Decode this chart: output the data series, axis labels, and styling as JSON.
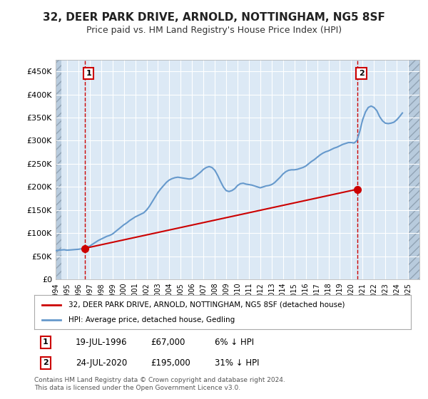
{
  "title": "32, DEER PARK DRIVE, ARNOLD, NOTTINGHAM, NG5 8SF",
  "subtitle": "Price paid vs. HM Land Registry's House Price Index (HPI)",
  "ylabel": "",
  "background_color": "#ffffff",
  "plot_bg_color": "#dce9f5",
  "hatch_color": "#b0c4d8",
  "grid_color": "#ffffff",
  "red_line_color": "#cc0000",
  "blue_line_color": "#6699cc",
  "marker1_x": 1996.55,
  "marker1_y": 67000,
  "marker2_x": 2020.55,
  "marker2_y": 195000,
  "annotation1": "1",
  "annotation2": "2",
  "legend_label1": "32, DEER PARK DRIVE, ARNOLD, NOTTINGHAM, NG5 8SF (detached house)",
  "legend_label2": "HPI: Average price, detached house, Gedling",
  "note1_label": "1",
  "note1_date": "19-JUL-1996",
  "note1_price": "£67,000",
  "note1_hpi": "6% ↓ HPI",
  "note2_label": "2",
  "note2_date": "24-JUL-2020",
  "note2_price": "£195,000",
  "note2_hpi": "31% ↓ HPI",
  "footer": "Contains HM Land Registry data © Crown copyright and database right 2024.\nThis data is licensed under the Open Government Licence v3.0.",
  "ylim": [
    0,
    475000
  ],
  "xlim_start": 1994,
  "xlim_end": 2026,
  "yticks": [
    0,
    50000,
    100000,
    150000,
    200000,
    250000,
    300000,
    350000,
    400000,
    450000
  ],
  "ytick_labels": [
    "£0",
    "£50K",
    "£100K",
    "£150K",
    "£200K",
    "£250K",
    "£300K",
    "£350K",
    "£400K",
    "£450K"
  ],
  "xticks": [
    1994,
    1995,
    1996,
    1997,
    1998,
    1999,
    2000,
    2001,
    2002,
    2003,
    2004,
    2005,
    2006,
    2007,
    2008,
    2009,
    2010,
    2011,
    2012,
    2013,
    2014,
    2015,
    2016,
    2017,
    2018,
    2019,
    2020,
    2021,
    2022,
    2023,
    2024,
    2025
  ],
  "hpi_data": {
    "x": [
      1994.0,
      1994.25,
      1994.5,
      1994.75,
      1995.0,
      1995.25,
      1995.5,
      1995.75,
      1996.0,
      1996.25,
      1996.5,
      1996.75,
      1997.0,
      1997.25,
      1997.5,
      1997.75,
      1998.0,
      1998.25,
      1998.5,
      1998.75,
      1999.0,
      1999.25,
      1999.5,
      1999.75,
      2000.0,
      2000.25,
      2000.5,
      2000.75,
      2001.0,
      2001.25,
      2001.5,
      2001.75,
      2002.0,
      2002.25,
      2002.5,
      2002.75,
      2003.0,
      2003.25,
      2003.5,
      2003.75,
      2004.0,
      2004.25,
      2004.5,
      2004.75,
      2005.0,
      2005.25,
      2005.5,
      2005.75,
      2006.0,
      2006.25,
      2006.5,
      2006.75,
      2007.0,
      2007.25,
      2007.5,
      2007.75,
      2008.0,
      2008.25,
      2008.5,
      2008.75,
      2009.0,
      2009.25,
      2009.5,
      2009.75,
      2010.0,
      2010.25,
      2010.5,
      2010.75,
      2011.0,
      2011.25,
      2011.5,
      2011.75,
      2012.0,
      2012.25,
      2012.5,
      2012.75,
      2013.0,
      2013.25,
      2013.5,
      2013.75,
      2014.0,
      2014.25,
      2014.5,
      2014.75,
      2015.0,
      2015.25,
      2015.5,
      2015.75,
      2016.0,
      2016.25,
      2016.5,
      2016.75,
      2017.0,
      2017.25,
      2017.5,
      2017.75,
      2018.0,
      2018.25,
      2018.5,
      2018.75,
      2019.0,
      2019.25,
      2019.5,
      2019.75,
      2020.0,
      2020.25,
      2020.5,
      2020.75,
      2021.0,
      2021.25,
      2021.5,
      2021.75,
      2022.0,
      2022.25,
      2022.5,
      2022.75,
      2023.0,
      2023.25,
      2023.5,
      2023.75,
      2024.0,
      2024.25,
      2024.5
    ],
    "y": [
      62000,
      63000,
      63500,
      64000,
      63000,
      63500,
      64000,
      64500,
      65000,
      66000,
      67000,
      69000,
      72000,
      76000,
      80000,
      84000,
      87000,
      90000,
      93000,
      95000,
      98000,
      103000,
      108000,
      113000,
      118000,
      122000,
      127000,
      131000,
      135000,
      138000,
      141000,
      144000,
      150000,
      158000,
      168000,
      178000,
      188000,
      196000,
      203000,
      210000,
      215000,
      218000,
      220000,
      221000,
      220000,
      219000,
      218000,
      217000,
      218000,
      222000,
      227000,
      232000,
      238000,
      242000,
      244000,
      242000,
      236000,
      225000,
      212000,
      200000,
      192000,
      190000,
      192000,
      196000,
      203000,
      207000,
      208000,
      206000,
      205000,
      204000,
      202000,
      200000,
      198000,
      200000,
      202000,
      203000,
      205000,
      209000,
      215000,
      221000,
      228000,
      233000,
      236000,
      237000,
      237000,
      238000,
      240000,
      242000,
      245000,
      250000,
      255000,
      259000,
      264000,
      269000,
      273000,
      276000,
      278000,
      281000,
      284000,
      286000,
      289000,
      292000,
      294000,
      296000,
      296000,
      295000,
      300000,
      320000,
      345000,
      362000,
      372000,
      375000,
      372000,
      365000,
      352000,
      343000,
      338000,
      337000,
      338000,
      340000,
      345000,
      352000,
      360000
    ]
  },
  "price_data": {
    "x": [
      1996.55,
      2020.55
    ],
    "y": [
      67000,
      195000
    ]
  }
}
